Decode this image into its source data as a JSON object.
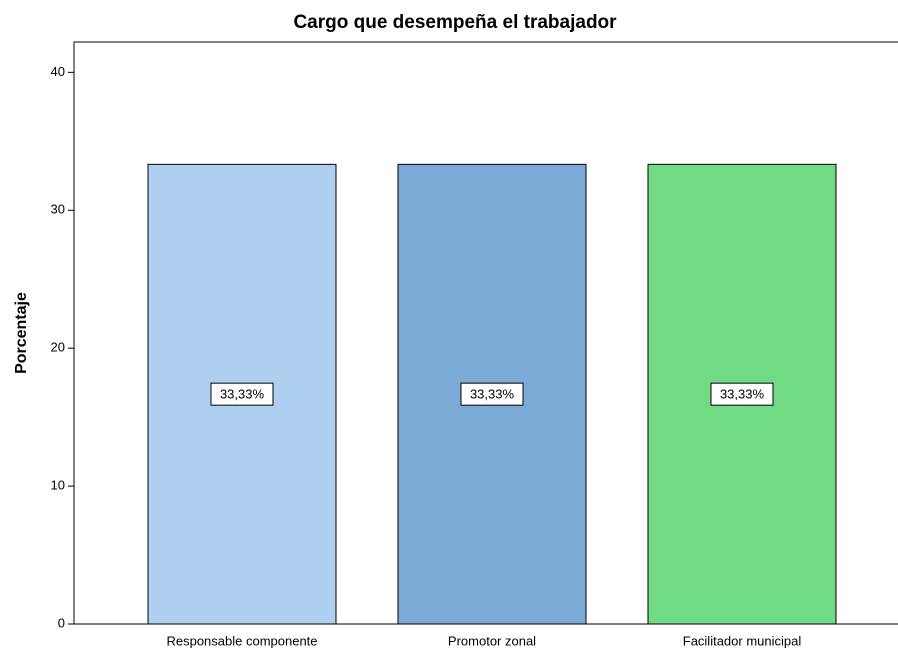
{
  "chart_data": {
    "type": "bar",
    "title": "Cargo que desempeña el trabajador",
    "y_label": "Porcentaje",
    "categories": [
      "Responsable componente",
      "Promotor zonal",
      "Facilitador municipal"
    ],
    "values": [
      33.33,
      33.33,
      33.33
    ],
    "value_labels": [
      "33,33%",
      "33,33%",
      "33,33%"
    ],
    "colors": [
      "#aecfef",
      "#7baad6",
      "#70db84"
    ],
    "ylim": [
      0,
      42.2
    ],
    "yticks": [
      0,
      10,
      20,
      30,
      40
    ],
    "grid": false
  }
}
